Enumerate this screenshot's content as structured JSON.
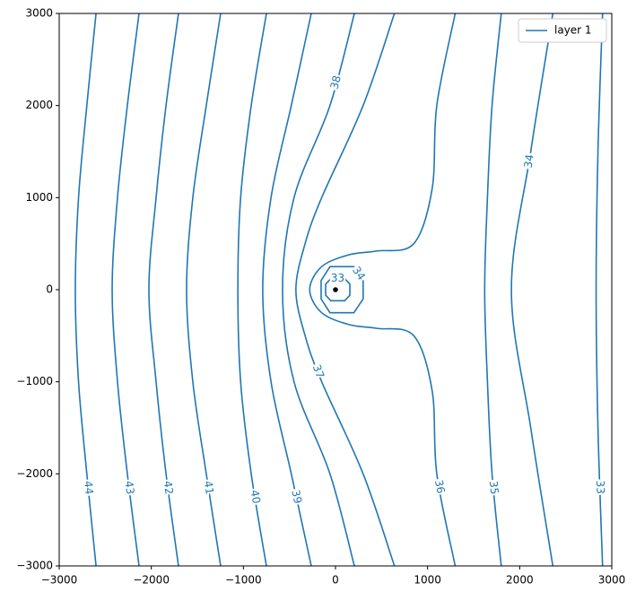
{
  "chart_data": {
    "type": "contour",
    "color": "#1f77b4",
    "xlim": [
      -3000,
      3000
    ],
    "ylim": [
      -3000,
      3000
    ],
    "xticks": [
      {
        "value": -3000,
        "label": "−3000"
      },
      {
        "value": -2000,
        "label": "−2000"
      },
      {
        "value": -1000,
        "label": "−1000"
      },
      0,
      1000,
      2000,
      3000
    ],
    "yticks": [
      {
        "value": -3000,
        "label": "−3000"
      },
      {
        "value": -2000,
        "label": "−2000"
      },
      {
        "value": -1000,
        "label": "−1000"
      },
      0,
      1000,
      2000,
      3000
    ],
    "legend": "upper right",
    "series": [
      {
        "name": "layer 1",
        "color": "#1f77b4"
      }
    ],
    "contours": [
      {
        "level": 44,
        "x": [
          -2600,
          -2700,
          -2790,
          -2825,
          -2790,
          -2700,
          -2600
        ],
        "y": [
          3000,
          2000,
          1000,
          0,
          -1000,
          -2000,
          -3000
        ]
      },
      {
        "level": 43,
        "x": [
          -2133,
          -2260,
          -2367,
          -2425,
          -2367,
          -2260,
          -2133
        ],
        "y": [
          3000,
          2000,
          1000,
          0,
          -1000,
          -2000,
          -3000
        ]
      },
      {
        "level": 42,
        "x": [
          -1705,
          -1840,
          -1948,
          -2026,
          -1948,
          -1840,
          -1705
        ],
        "y": [
          3000,
          2000,
          1000,
          0,
          -1000,
          -2000,
          -3000
        ]
      },
      {
        "level": 41,
        "x": [
          -1247,
          -1403,
          -1549,
          -1617,
          -1549,
          -1403,
          -1247
        ],
        "y": [
          3000,
          2000,
          1000,
          0,
          -1000,
          -2000,
          -3000
        ]
      },
      {
        "level": 40,
        "x": [
          -750,
          -915,
          -1030,
          -1060,
          -1030,
          -915,
          -750
        ],
        "y": [
          3000,
          2000,
          1000,
          0,
          -1000,
          -2000,
          -3000
        ]
      },
      {
        "level": 39,
        "x": [
          -263,
          -480,
          -700,
          -790,
          -700,
          -480,
          -263
        ],
        "y": [
          3000,
          2000,
          1000,
          0,
          -1000,
          -2000,
          -3000
        ]
      },
      {
        "level": 38,
        "x": [
          205,
          -60,
          -450,
          -575,
          -450,
          -60,
          205
        ],
        "y": [
          3000,
          2000,
          1000,
          0,
          -1000,
          -2000,
          -3000
        ]
      },
      {
        "level": 37,
        "x": [
          640,
          300,
          -150,
          -330,
          -430,
          -330,
          -150,
          300,
          640
        ],
        "y": [
          3000,
          2000,
          1000,
          500,
          0,
          -500,
          -1000,
          -2000,
          -3000
        ]
      },
      {
        "level": 36,
        "x": [
          1300,
          1100,
          1050,
          850,
          450,
          150,
          -150,
          -280,
          -150,
          150,
          450,
          850,
          1050,
          1100,
          1300
        ],
        "y": [
          3000,
          2000,
          1100,
          500,
          420,
          380,
          250,
          0,
          -250,
          -380,
          -420,
          -500,
          -1100,
          -2000,
          -3000
        ]
      },
      {
        "level": 35,
        "x": [
          1800,
          1700,
          1650,
          1620,
          1650,
          1700,
          1800
        ],
        "y": [
          3000,
          2000,
          1000,
          0,
          -1000,
          -2000,
          -3000
        ]
      },
      {
        "level": 34,
        "x": [
          2360,
          2120,
          1910,
          2120,
          2360
        ],
        "y": [
          3000,
          1500,
          0,
          -1500,
          -3000
        ]
      },
      {
        "level": 33,
        "x": [
          2900,
          2850,
          2830,
          2850,
          2900
        ],
        "y": [
          3000,
          1500,
          0,
          -1500,
          -3000
        ]
      },
      {
        "level": 34,
        "closed": true,
        "x": [
          300,
          200,
          -60,
          -156,
          -156,
          -60,
          200,
          300
        ],
        "y": [
          100,
          250,
          250,
          100,
          -100,
          -250,
          -250,
          -100
        ]
      },
      {
        "level": 33,
        "closed": true,
        "x": [
          156,
          100,
          -50,
          -107,
          -107,
          -50,
          100,
          156
        ],
        "y": [
          60,
          120,
          120,
          60,
          -60,
          -120,
          -120,
          -60
        ]
      }
    ],
    "well": {
      "x": 0,
      "y": 0,
      "color": "#000000"
    }
  }
}
